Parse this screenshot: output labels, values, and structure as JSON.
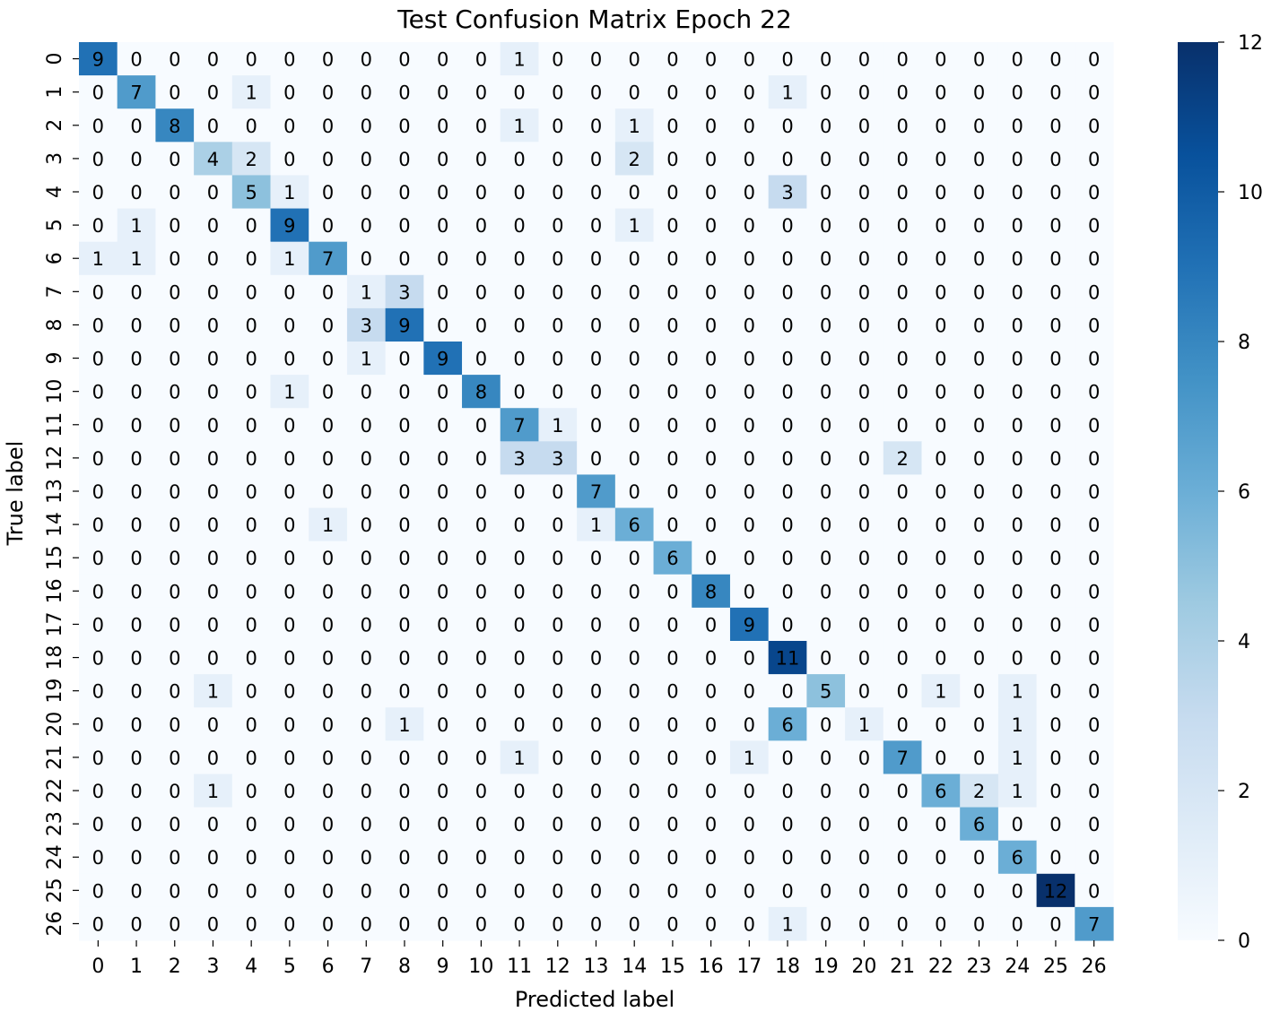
{
  "chart_data": {
    "type": "heatmap",
    "title": "Test Confusion Matrix Epoch 22",
    "xlabel": "Predicted label",
    "ylabel": "True label",
    "x_tick_labels": [
      "0",
      "1",
      "2",
      "3",
      "4",
      "5",
      "6",
      "7",
      "8",
      "9",
      "10",
      "11",
      "12",
      "13",
      "14",
      "15",
      "16",
      "17",
      "18",
      "19",
      "20",
      "21",
      "22",
      "23",
      "24",
      "25",
      "26"
    ],
    "y_tick_labels": [
      "0",
      "1",
      "2",
      "3",
      "4",
      "5",
      "6",
      "7",
      "8",
      "9",
      "10",
      "11",
      "12",
      "13",
      "14",
      "15",
      "16",
      "17",
      "18",
      "19",
      "20",
      "21",
      "22",
      "23",
      "24",
      "25",
      "26"
    ],
    "colormap": "Blues",
    "vmin": 0,
    "vmax": 12,
    "colorbar_ticks": [
      "0",
      "2",
      "4",
      "6",
      "8",
      "10",
      "12"
    ],
    "matrix": [
      [
        9,
        0,
        0,
        0,
        0,
        0,
        0,
        0,
        0,
        0,
        0,
        1,
        0,
        0,
        0,
        0,
        0,
        0,
        0,
        0,
        0,
        0,
        0,
        0,
        0,
        0,
        0
      ],
      [
        0,
        7,
        0,
        0,
        1,
        0,
        0,
        0,
        0,
        0,
        0,
        0,
        0,
        0,
        0,
        0,
        0,
        0,
        1,
        0,
        0,
        0,
        0,
        0,
        0,
        0,
        0
      ],
      [
        0,
        0,
        8,
        0,
        0,
        0,
        0,
        0,
        0,
        0,
        0,
        1,
        0,
        0,
        1,
        0,
        0,
        0,
        0,
        0,
        0,
        0,
        0,
        0,
        0,
        0,
        0
      ],
      [
        0,
        0,
        0,
        4,
        2,
        0,
        0,
        0,
        0,
        0,
        0,
        0,
        0,
        0,
        2,
        0,
        0,
        0,
        0,
        0,
        0,
        0,
        0,
        0,
        0,
        0,
        0
      ],
      [
        0,
        0,
        0,
        0,
        5,
        1,
        0,
        0,
        0,
        0,
        0,
        0,
        0,
        0,
        0,
        0,
        0,
        0,
        3,
        0,
        0,
        0,
        0,
        0,
        0,
        0,
        0
      ],
      [
        0,
        1,
        0,
        0,
        0,
        9,
        0,
        0,
        0,
        0,
        0,
        0,
        0,
        0,
        1,
        0,
        0,
        0,
        0,
        0,
        0,
        0,
        0,
        0,
        0,
        0,
        0
      ],
      [
        1,
        1,
        0,
        0,
        0,
        1,
        7,
        0,
        0,
        0,
        0,
        0,
        0,
        0,
        0,
        0,
        0,
        0,
        0,
        0,
        0,
        0,
        0,
        0,
        0,
        0,
        0
      ],
      [
        0,
        0,
        0,
        0,
        0,
        0,
        0,
        1,
        3,
        0,
        0,
        0,
        0,
        0,
        0,
        0,
        0,
        0,
        0,
        0,
        0,
        0,
        0,
        0,
        0,
        0,
        0
      ],
      [
        0,
        0,
        0,
        0,
        0,
        0,
        0,
        3,
        9,
        0,
        0,
        0,
        0,
        0,
        0,
        0,
        0,
        0,
        0,
        0,
        0,
        0,
        0,
        0,
        0,
        0,
        0
      ],
      [
        0,
        0,
        0,
        0,
        0,
        0,
        0,
        1,
        0,
        9,
        0,
        0,
        0,
        0,
        0,
        0,
        0,
        0,
        0,
        0,
        0,
        0,
        0,
        0,
        0,
        0,
        0
      ],
      [
        0,
        0,
        0,
        0,
        0,
        1,
        0,
        0,
        0,
        0,
        8,
        0,
        0,
        0,
        0,
        0,
        0,
        0,
        0,
        0,
        0,
        0,
        0,
        0,
        0,
        0,
        0
      ],
      [
        0,
        0,
        0,
        0,
        0,
        0,
        0,
        0,
        0,
        0,
        0,
        7,
        1,
        0,
        0,
        0,
        0,
        0,
        0,
        0,
        0,
        0,
        0,
        0,
        0,
        0,
        0
      ],
      [
        0,
        0,
        0,
        0,
        0,
        0,
        0,
        0,
        0,
        0,
        0,
        3,
        3,
        0,
        0,
        0,
        0,
        0,
        0,
        0,
        0,
        2,
        0,
        0,
        0,
        0,
        0
      ],
      [
        0,
        0,
        0,
        0,
        0,
        0,
        0,
        0,
        0,
        0,
        0,
        0,
        0,
        7,
        0,
        0,
        0,
        0,
        0,
        0,
        0,
        0,
        0,
        0,
        0,
        0,
        0
      ],
      [
        0,
        0,
        0,
        0,
        0,
        0,
        1,
        0,
        0,
        0,
        0,
        0,
        0,
        1,
        6,
        0,
        0,
        0,
        0,
        0,
        0,
        0,
        0,
        0,
        0,
        0,
        0
      ],
      [
        0,
        0,
        0,
        0,
        0,
        0,
        0,
        0,
        0,
        0,
        0,
        0,
        0,
        0,
        0,
        6,
        0,
        0,
        0,
        0,
        0,
        0,
        0,
        0,
        0,
        0,
        0
      ],
      [
        0,
        0,
        0,
        0,
        0,
        0,
        0,
        0,
        0,
        0,
        0,
        0,
        0,
        0,
        0,
        0,
        8,
        0,
        0,
        0,
        0,
        0,
        0,
        0,
        0,
        0,
        0
      ],
      [
        0,
        0,
        0,
        0,
        0,
        0,
        0,
        0,
        0,
        0,
        0,
        0,
        0,
        0,
        0,
        0,
        0,
        9,
        0,
        0,
        0,
        0,
        0,
        0,
        0,
        0,
        0
      ],
      [
        0,
        0,
        0,
        0,
        0,
        0,
        0,
        0,
        0,
        0,
        0,
        0,
        0,
        0,
        0,
        0,
        0,
        0,
        11,
        0,
        0,
        0,
        0,
        0,
        0,
        0,
        0
      ],
      [
        0,
        0,
        0,
        1,
        0,
        0,
        0,
        0,
        0,
        0,
        0,
        0,
        0,
        0,
        0,
        0,
        0,
        0,
        0,
        5,
        0,
        0,
        1,
        0,
        1,
        0,
        0
      ],
      [
        0,
        0,
        0,
        0,
        0,
        0,
        0,
        0,
        1,
        0,
        0,
        0,
        0,
        0,
        0,
        0,
        0,
        0,
        6,
        0,
        1,
        0,
        0,
        0,
        1,
        0,
        0
      ],
      [
        0,
        0,
        0,
        0,
        0,
        0,
        0,
        0,
        0,
        0,
        0,
        1,
        0,
        0,
        0,
        0,
        0,
        1,
        0,
        0,
        0,
        7,
        0,
        0,
        1,
        0,
        0
      ],
      [
        0,
        0,
        0,
        1,
        0,
        0,
        0,
        0,
        0,
        0,
        0,
        0,
        0,
        0,
        0,
        0,
        0,
        0,
        0,
        0,
        0,
        0,
        6,
        2,
        1,
        0,
        0
      ],
      [
        0,
        0,
        0,
        0,
        0,
        0,
        0,
        0,
        0,
        0,
        0,
        0,
        0,
        0,
        0,
        0,
        0,
        0,
        0,
        0,
        0,
        0,
        0,
        6,
        0,
        0,
        0
      ],
      [
        0,
        0,
        0,
        0,
        0,
        0,
        0,
        0,
        0,
        0,
        0,
        0,
        0,
        0,
        0,
        0,
        0,
        0,
        0,
        0,
        0,
        0,
        0,
        0,
        6,
        0,
        0
      ],
      [
        0,
        0,
        0,
        0,
        0,
        0,
        0,
        0,
        0,
        0,
        0,
        0,
        0,
        0,
        0,
        0,
        0,
        0,
        0,
        0,
        0,
        0,
        0,
        0,
        0,
        12,
        0
      ],
      [
        0,
        0,
        0,
        0,
        0,
        0,
        0,
        0,
        0,
        0,
        0,
        0,
        0,
        0,
        0,
        0,
        0,
        0,
        1,
        0,
        0,
        0,
        0,
        0,
        0,
        0,
        7
      ]
    ]
  }
}
